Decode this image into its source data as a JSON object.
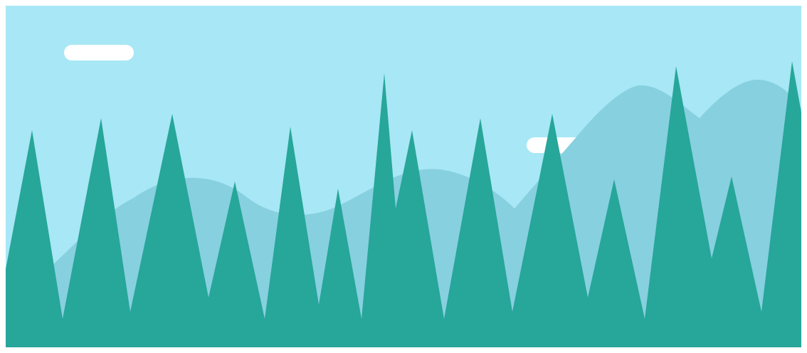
{
  "scene": {
    "colors": {
      "sky": "#A8E7F5",
      "hills": "#87D0DF",
      "trees": "#27A69A",
      "clouds": "#FFFFFF"
    },
    "clouds": [
      {
        "name": "cloud-left"
      },
      {
        "name": "cloud-right"
      }
    ]
  }
}
